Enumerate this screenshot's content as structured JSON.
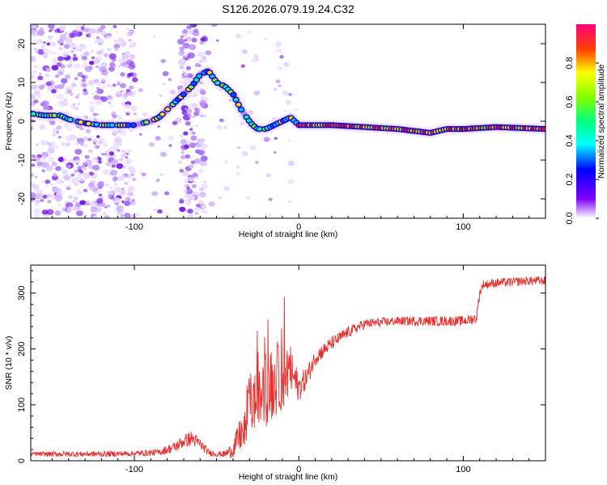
{
  "title": "S126.2026.079.19.24.C32",
  "chart_data": [
    {
      "type": "heatmap",
      "xlabel": "Height of straight line (km)",
      "ylabel": "Frequency (Hz)",
      "xlim": [
        -163,
        150
      ],
      "ylim": [
        -25,
        25
      ],
      "xticks": [
        -100,
        0,
        100
      ],
      "yticks": [
        -20,
        -10,
        0,
        10,
        20
      ],
      "colorbar": {
        "label": "Normalized spectral amplitude",
        "range": [
          0.0,
          1.0
        ],
        "ticks": [
          "0.0",
          "0.2",
          "0.4",
          "0.6",
          "0.8"
        ]
      },
      "ridge": {
        "x": [
          -163,
          -155,
          -145,
          -140,
          -135,
          -130,
          -120,
          -110,
          -100,
          -95,
          -90,
          -85,
          -80,
          -75,
          -70,
          -65,
          -60,
          -55,
          -50,
          -45,
          -40,
          -35,
          -30,
          -28,
          -25,
          -20,
          -15,
          -10,
          -5,
          0,
          10,
          20,
          40,
          60,
          80,
          90,
          100,
          120,
          150
        ],
        "y": [
          2,
          1.5,
          1.5,
          0.5,
          0,
          -0.5,
          -1,
          -1,
          -1,
          -0.5,
          0,
          1,
          3,
          5,
          7,
          9,
          12,
          13,
          10,
          9,
          7,
          3,
          0,
          -1,
          -2,
          -2,
          -1,
          0,
          1,
          -1,
          -1,
          -1,
          -1.5,
          -2,
          -3,
          -2,
          -2,
          -1.5,
          -2
        ]
      }
    },
    {
      "type": "line",
      "xlabel": "Height of straight line (km)",
      "ylabel": "SNR (10 * v/v)",
      "xlim": [
        -163,
        150
      ],
      "ylim": [
        0,
        350
      ],
      "xticks": [
        -100,
        0,
        100
      ],
      "yticks": [
        0,
        100,
        200,
        300
      ],
      "color": "#e8312f",
      "trend": {
        "x": [
          -163,
          -140,
          -120,
          -100,
          -85,
          -75,
          -70,
          -65,
          -60,
          -55,
          -50,
          -45,
          -40,
          -35,
          -30,
          -25,
          -20,
          -15,
          -10,
          -5,
          0,
          5,
          10,
          20,
          30,
          40,
          60,
          80,
          100,
          108,
          110,
          112,
          120,
          140,
          150
        ],
        "y": [
          12,
          12,
          12,
          13,
          15,
          25,
          35,
          40,
          30,
          15,
          12,
          12,
          20,
          50,
          100,
          110,
          120,
          140,
          150,
          160,
          130,
          150,
          185,
          210,
          230,
          245,
          250,
          250,
          250,
          255,
          300,
          315,
          318,
          322,
          322
        ],
        "noise": [
          4,
          5,
          5,
          5,
          6,
          10,
          12,
          14,
          10,
          6,
          5,
          6,
          15,
          35,
          60,
          50,
          60,
          65,
          60,
          45,
          25,
          20,
          15,
          12,
          10,
          9,
          8,
          9,
          9,
          10,
          8,
          8,
          8,
          8,
          8
        ]
      }
    }
  ]
}
